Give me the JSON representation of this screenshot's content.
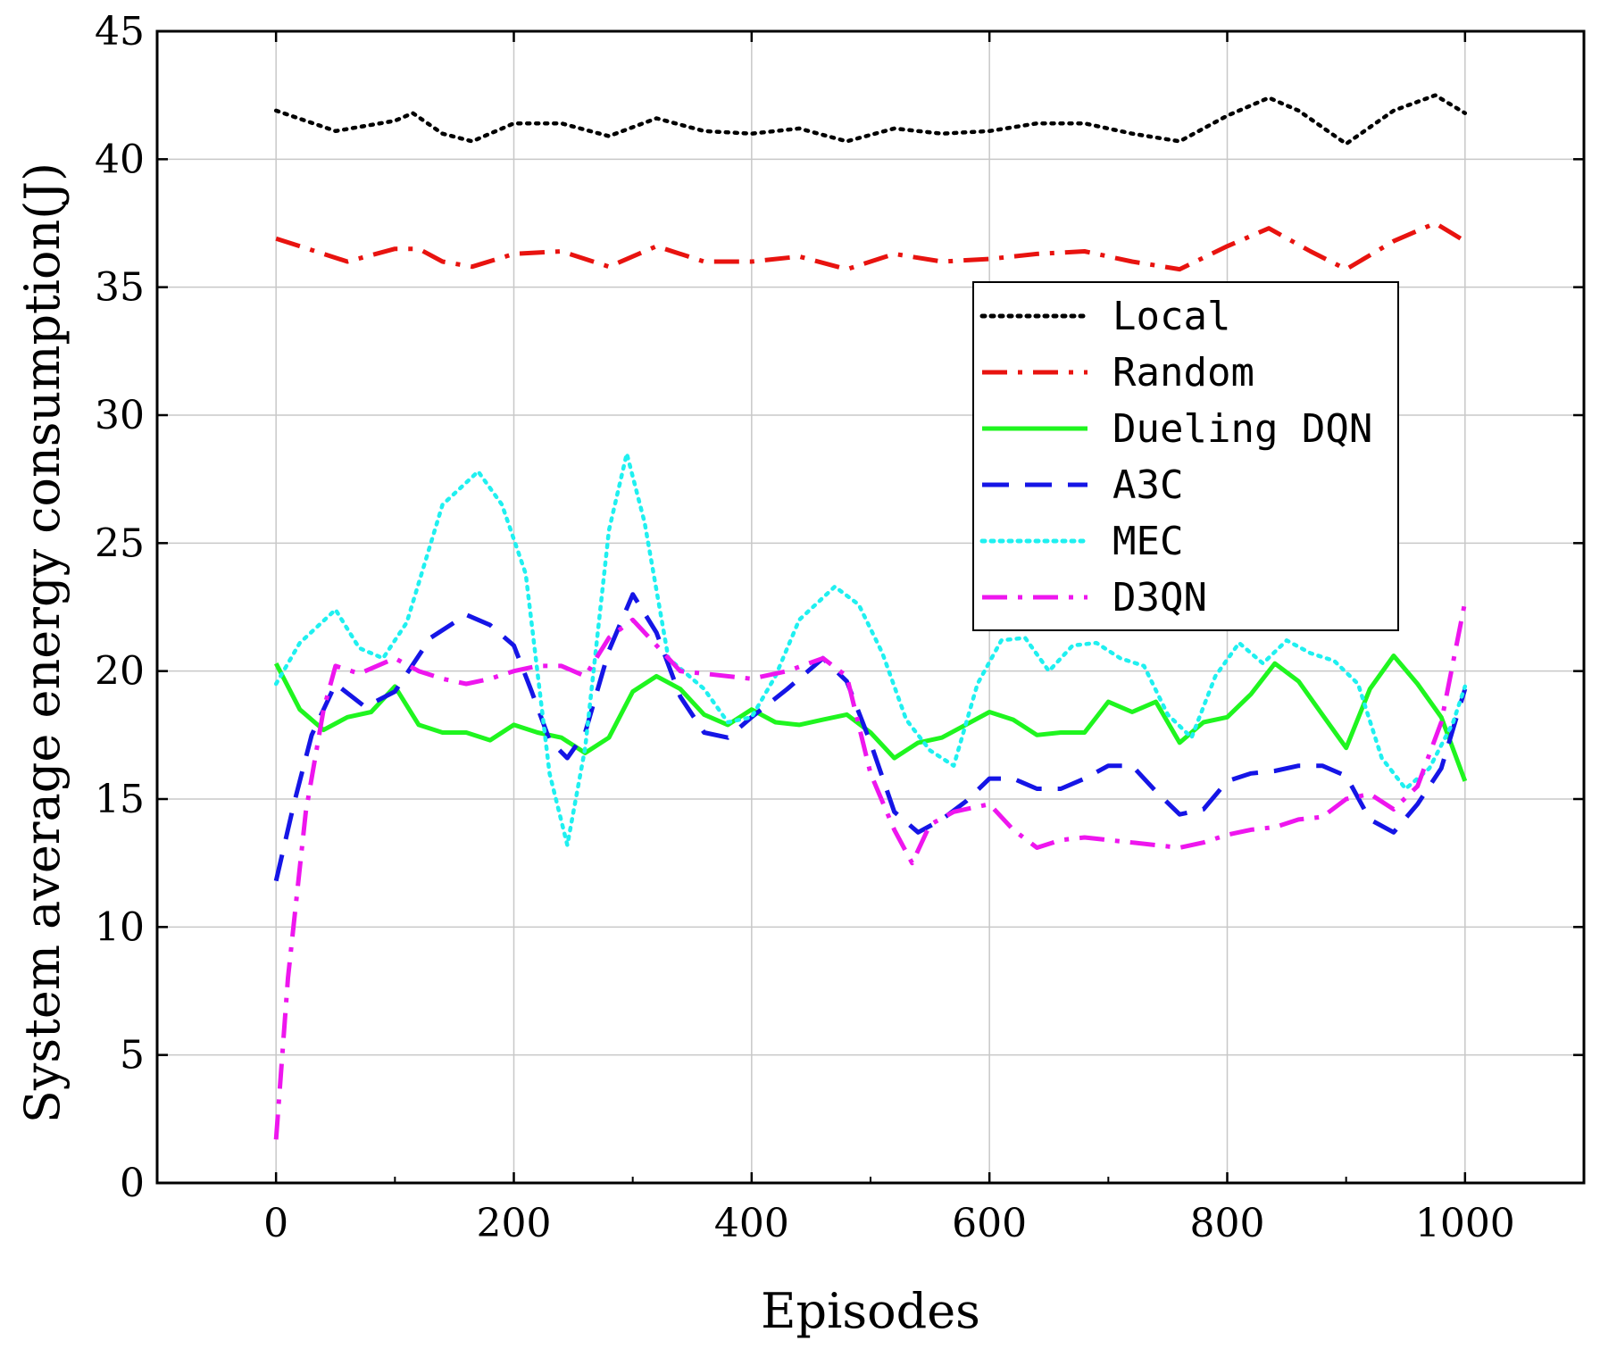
{
  "chart_data": {
    "type": "line",
    "title": "",
    "xlabel": "Episodes",
    "ylabel": "System average energy consumption(J)",
    "xlim": [
      -100,
      1100
    ],
    "ylim": [
      0,
      45
    ],
    "xticks": [
      "0",
      "200",
      "400",
      "600",
      "800",
      "1000"
    ],
    "yticks": [
      "0",
      "5",
      "10",
      "15",
      "20",
      "25",
      "30",
      "35",
      "40",
      "45"
    ],
    "grid": true,
    "legend_position": "right",
    "series": [
      {
        "name": "Local",
        "color": "#000000",
        "style": "dotted",
        "x": [
          0,
          50,
          100,
          115,
          140,
          165,
          200,
          240,
          280,
          320,
          360,
          400,
          440,
          480,
          520,
          560,
          600,
          640,
          680,
          720,
          760,
          800,
          835,
          860,
          900,
          940,
          975,
          1000
        ],
        "y": [
          41.9,
          41.1,
          41.5,
          41.8,
          41.0,
          40.7,
          41.4,
          41.4,
          40.9,
          41.6,
          41.1,
          41.0,
          41.2,
          40.7,
          41.2,
          41.0,
          41.1,
          41.4,
          41.4,
          41.0,
          40.7,
          41.7,
          42.4,
          41.9,
          40.6,
          41.9,
          42.5,
          41.8
        ]
      },
      {
        "name": "Random",
        "color": "#e8130f",
        "style": "dashdot",
        "x": [
          0,
          60,
          100,
          120,
          140,
          165,
          200,
          240,
          280,
          320,
          360,
          400,
          440,
          480,
          520,
          560,
          600,
          640,
          680,
          720,
          760,
          800,
          835,
          870,
          900,
          940,
          975,
          1000
        ],
        "y": [
          36.9,
          36.0,
          36.5,
          36.5,
          36.0,
          35.8,
          36.3,
          36.4,
          35.8,
          36.6,
          36.0,
          36.0,
          36.2,
          35.7,
          36.3,
          36.0,
          36.1,
          36.3,
          36.4,
          36.0,
          35.7,
          36.6,
          37.3,
          36.4,
          35.7,
          36.8,
          37.5,
          36.8
        ]
      },
      {
        "name": "Dueling DQN",
        "color": "#1ff51f",
        "style": "solid",
        "x": [
          0,
          20,
          40,
          60,
          80,
          100,
          120,
          140,
          160,
          180,
          200,
          220,
          240,
          260,
          280,
          300,
          320,
          340,
          360,
          380,
          400,
          420,
          440,
          460,
          480,
          500,
          520,
          540,
          560,
          580,
          600,
          620,
          640,
          660,
          680,
          700,
          720,
          740,
          760,
          780,
          800,
          820,
          840,
          860,
          880,
          900,
          920,
          940,
          960,
          980,
          1000
        ],
        "y": [
          20.3,
          18.5,
          17.7,
          18.2,
          18.4,
          19.4,
          17.9,
          17.6,
          17.6,
          17.3,
          17.9,
          17.6,
          17.4,
          16.8,
          17.4,
          19.2,
          19.8,
          19.3,
          18.3,
          17.9,
          18.5,
          18.0,
          17.9,
          18.1,
          18.3,
          17.6,
          16.6,
          17.2,
          17.4,
          17.9,
          18.4,
          18.1,
          17.5,
          17.6,
          17.6,
          18.8,
          18.4,
          18.8,
          17.2,
          18.0,
          18.2,
          19.1,
          20.3,
          19.6,
          18.3,
          17.0,
          19.3,
          20.6,
          19.5,
          18.2,
          15.7
        ]
      },
      {
        "name": "A3C",
        "color": "#1515e6",
        "style": "dashed",
        "x": [
          0,
          15,
          30,
          50,
          75,
          100,
          130,
          160,
          180,
          200,
          215,
          230,
          245,
          260,
          280,
          300,
          320,
          340,
          360,
          380,
          400,
          430,
          460,
          480,
          500,
          520,
          540,
          560,
          580,
          600,
          620,
          640,
          660,
          680,
          700,
          720,
          740,
          760,
          780,
          800,
          820,
          840,
          860,
          880,
          900,
          920,
          940,
          960,
          980,
          1000
        ],
        "y": [
          11.8,
          14.8,
          17.5,
          19.5,
          18.6,
          19.2,
          21.3,
          22.2,
          21.8,
          21.0,
          19.2,
          17.3,
          16.6,
          17.6,
          20.8,
          23.0,
          21.5,
          19.0,
          17.6,
          17.4,
          18.2,
          19.3,
          20.5,
          19.6,
          17.2,
          14.5,
          13.7,
          14.2,
          14.9,
          15.8,
          15.8,
          15.4,
          15.4,
          15.8,
          16.3,
          16.3,
          15.3,
          14.4,
          14.6,
          15.7,
          16.0,
          16.1,
          16.3,
          16.3,
          15.9,
          14.2,
          13.7,
          14.8,
          16.2,
          19.3
        ]
      },
      {
        "name": "MEC",
        "color": "#1ff0f0",
        "style": "dotted",
        "x": [
          0,
          20,
          50,
          70,
          90,
          110,
          140,
          170,
          190,
          210,
          230,
          245,
          260,
          280,
          295,
          310,
          330,
          360,
          380,
          400,
          420,
          440,
          470,
          490,
          510,
          530,
          550,
          570,
          590,
          610,
          630,
          650,
          670,
          690,
          710,
          730,
          750,
          770,
          790,
          810,
          830,
          850,
          870,
          890,
          910,
          930,
          950,
          970,
          990,
          1000
        ],
        "y": [
          19.5,
          21.1,
          22.4,
          20.9,
          20.5,
          21.9,
          26.5,
          27.8,
          26.5,
          23.8,
          16.0,
          13.2,
          17.0,
          25.5,
          28.5,
          25.8,
          20.5,
          19.3,
          18.0,
          18.2,
          19.8,
          22.0,
          23.3,
          22.6,
          20.7,
          18.1,
          16.9,
          16.3,
          19.5,
          21.2,
          21.3,
          20.0,
          21.0,
          21.1,
          20.5,
          20.2,
          18.3,
          17.4,
          19.8,
          21.1,
          20.3,
          21.2,
          20.7,
          20.4,
          19.5,
          16.6,
          15.4,
          16.2,
          18.0,
          19.4
        ]
      },
      {
        "name": "D3QN",
        "color": "#ee16ee",
        "style": "dashdot",
        "x": [
          0,
          10,
          25,
          40,
          50,
          70,
          100,
          120,
          140,
          160,
          180,
          200,
          220,
          240,
          260,
          280,
          300,
          320,
          340,
          360,
          400,
          430,
          460,
          480,
          500,
          520,
          535,
          550,
          570,
          600,
          620,
          640,
          660,
          680,
          700,
          720,
          740,
          760,
          780,
          800,
          820,
          840,
          860,
          880,
          900,
          920,
          940,
          960,
          980,
          1000
        ],
        "y": [
          1.7,
          8.0,
          14.5,
          18.5,
          20.2,
          19.9,
          20.5,
          20.0,
          19.7,
          19.5,
          19.7,
          20.0,
          20.2,
          20.2,
          19.8,
          21.3,
          22.0,
          21.0,
          20.0,
          19.9,
          19.7,
          20.0,
          20.5,
          19.8,
          16.0,
          13.8,
          12.5,
          14.0,
          14.5,
          14.8,
          13.8,
          13.1,
          13.4,
          13.5,
          13.4,
          13.3,
          13.2,
          13.1,
          13.3,
          13.6,
          13.8,
          13.9,
          14.2,
          14.3,
          15.0,
          15.2,
          14.6,
          15.5,
          18.0,
          22.7
        ]
      }
    ]
  }
}
